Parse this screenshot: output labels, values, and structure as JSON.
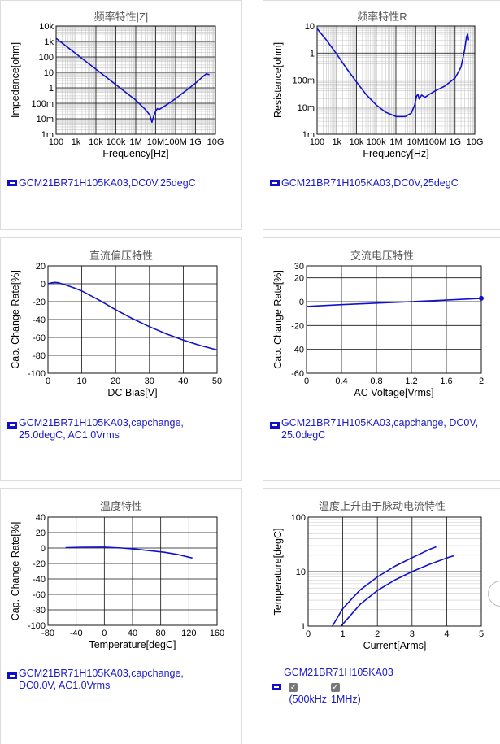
{
  "charts": [
    {
      "id": "zfreq",
      "title": "频率特性|Z|",
      "xlabel": "Frequency[Hz]",
      "ylabel": "Impedance[ohm]",
      "xscale": "log",
      "yscale": "log",
      "xlim": [
        100,
        10000000000
      ],
      "ylim": [
        0.001,
        10000
      ],
      "xticks": [
        {
          "v": 100,
          "l": "100"
        },
        {
          "v": 1000,
          "l": "1k"
        },
        {
          "v": 10000,
          "l": "10k"
        },
        {
          "v": 100000,
          "l": "100k"
        },
        {
          "v": 1000000,
          "l": "1M"
        },
        {
          "v": 10000000,
          "l": "10M"
        },
        {
          "v": 100000000,
          "l": "100M"
        },
        {
          "v": 1000000000,
          "l": "1G"
        },
        {
          "v": 10000000000,
          "l": "10G"
        }
      ],
      "yticks": [
        {
          "v": 10000,
          "l": "10k"
        },
        {
          "v": 1000,
          "l": "1k"
        },
        {
          "v": 100,
          "l": "100"
        },
        {
          "v": 10,
          "l": "10"
        },
        {
          "v": 1,
          "l": "1"
        },
        {
          "v": 0.1,
          "l": "100m"
        },
        {
          "v": 0.01,
          "l": "10m"
        },
        {
          "v": 0.001,
          "l": "1m"
        }
      ],
      "legend": [
        "GCM21BR71H105KA03,DC0V,25degC"
      ],
      "series": [
        {
          "points": [
            [
              100,
              1600
            ],
            [
              1000,
              160
            ],
            [
              10000,
              16
            ],
            [
              100000,
              1.6
            ],
            [
              1000000,
              0.16
            ],
            [
              3000000,
              0.04
            ],
            [
              5000000,
              0.018
            ],
            [
              6500000,
              0.006
            ],
            [
              8000000,
              0.015
            ],
            [
              10000000,
              0.03
            ],
            [
              12000000,
              0.045
            ],
            [
              15000000,
              0.04
            ],
            [
              20000000,
              0.05
            ],
            [
              40000000,
              0.09
            ],
            [
              100000000,
              0.2
            ],
            [
              300000000,
              0.6
            ],
            [
              1000000000,
              2
            ],
            [
              2000000000,
              4.5
            ],
            [
              3500000000,
              8
            ],
            [
              5000000000,
              7
            ]
          ]
        }
      ]
    },
    {
      "id": "rfreq",
      "title": "频率特性R",
      "xlabel": "Frequency[Hz]",
      "ylabel": "Resistance[ohm]",
      "xscale": "log",
      "yscale": "log",
      "xlim": [
        100,
        10000000000
      ],
      "ylim": [
        0.001,
        10
      ],
      "xticks": [
        {
          "v": 100,
          "l": "100"
        },
        {
          "v": 1000,
          "l": "1k"
        },
        {
          "v": 10000,
          "l": "10k"
        },
        {
          "v": 100000,
          "l": "100k"
        },
        {
          "v": 1000000,
          "l": "1M"
        },
        {
          "v": 10000000,
          "l": "10M"
        },
        {
          "v": 100000000,
          "l": "100M"
        },
        {
          "v": 1000000000,
          "l": "1G"
        },
        {
          "v": 10000000000,
          "l": "10G"
        }
      ],
      "yticks": [
        {
          "v": 10,
          "l": "10"
        },
        {
          "v": 1,
          "l": "1"
        },
        {
          "v": 0.1,
          "l": "100m"
        },
        {
          "v": 0.01,
          "l": "10m"
        },
        {
          "v": 0.001,
          "l": "1m"
        }
      ],
      "legend": [
        "GCM21BR71H105KA03,DC0V,25degC"
      ],
      "series": [
        {
          "points": [
            [
              100,
              8
            ],
            [
              300,
              3
            ],
            [
              1000,
              0.9
            ],
            [
              3000,
              0.28
            ],
            [
              10000,
              0.085
            ],
            [
              30000,
              0.03
            ],
            [
              100000,
              0.012
            ],
            [
              300000,
              0.0065
            ],
            [
              1000000,
              0.0045
            ],
            [
              3000000,
              0.0045
            ],
            [
              6000000,
              0.006
            ],
            [
              9000000,
              0.012
            ],
            [
              11000000,
              0.025
            ],
            [
              13000000,
              0.03
            ],
            [
              15000000,
              0.02
            ],
            [
              20000000,
              0.028
            ],
            [
              30000000,
              0.023
            ],
            [
              50000000,
              0.03
            ],
            [
              100000000,
              0.04
            ],
            [
              300000000,
              0.06
            ],
            [
              1000000000,
              0.12
            ],
            [
              2000000000,
              0.3
            ],
            [
              3000000000,
              1.2
            ],
            [
              3800000000,
              4
            ],
            [
              4300000000,
              5
            ],
            [
              4800000000,
              3
            ]
          ]
        }
      ]
    },
    {
      "id": "dcbias",
      "title": "直流偏压特性",
      "xlabel": "DC Bias[V]",
      "ylabel": "Cap. Change Rate[%]",
      "xscale": "linear",
      "yscale": "linear",
      "xlim": [
        0,
        50
      ],
      "ylim": [
        -100,
        20
      ],
      "xticks": [
        {
          "v": 0,
          "l": "0"
        },
        {
          "v": 10,
          "l": "10"
        },
        {
          "v": 20,
          "l": "20"
        },
        {
          "v": 30,
          "l": "30"
        },
        {
          "v": 40,
          "l": "40"
        },
        {
          "v": 50,
          "l": "50"
        }
      ],
      "yticks": [
        {
          "v": 20,
          "l": "20"
        },
        {
          "v": 0,
          "l": "0"
        },
        {
          "v": -20,
          "l": "-20"
        },
        {
          "v": -40,
          "l": "-40"
        },
        {
          "v": -60,
          "l": "-60"
        },
        {
          "v": -80,
          "l": "-80"
        },
        {
          "v": -100,
          "l": "-100"
        }
      ],
      "legend": [
        "GCM21BR71H105KA03,capchange,",
        "25.0degC, AC1.0Vrms"
      ],
      "series": [
        {
          "points": [
            [
              0,
              0
            ],
            [
              1,
              1
            ],
            [
              2,
              1.5
            ],
            [
              3,
              1.2
            ],
            [
              5,
              -1
            ],
            [
              8,
              -5
            ],
            [
              10,
              -8
            ],
            [
              15,
              -18
            ],
            [
              20,
              -29
            ],
            [
              25,
              -39
            ],
            [
              30,
              -48
            ],
            [
              35,
              -56
            ],
            [
              40,
              -63
            ],
            [
              45,
              -69
            ],
            [
              50,
              -74
            ]
          ]
        }
      ]
    },
    {
      "id": "acvolt",
      "title": "交流电压特性",
      "xlabel": "AC Voltage[Vrms]",
      "ylabel": "Cap. Change Rate[%]",
      "xscale": "linear",
      "yscale": "linear",
      "xlim": [
        0,
        2
      ],
      "ylim": [
        -60,
        30
      ],
      "xticks": [
        {
          "v": 0,
          "l": "0"
        },
        {
          "v": 0.4,
          "l": "0.4"
        },
        {
          "v": 0.8,
          "l": "0.8"
        },
        {
          "v": 1.2,
          "l": "1.2"
        },
        {
          "v": 1.6,
          "l": "1.6"
        },
        {
          "v": 2,
          "l": "2"
        }
      ],
      "yticks": [
        {
          "v": 30,
          "l": "30"
        },
        {
          "v": 20,
          "l": "20"
        },
        {
          "v": 0,
          "l": "0"
        },
        {
          "v": -20,
          "l": "-20"
        },
        {
          "v": -40,
          "l": "-40"
        },
        {
          "v": -60,
          "l": "-60"
        }
      ],
      "legend": [
        "GCM21BR71H105KA03,capchange, DC0V,",
        "25.0degC"
      ],
      "endDot": true,
      "series": [
        {
          "points": [
            [
              0,
              -4
            ],
            [
              0.4,
              -2.5
            ],
            [
              0.8,
              -1.2
            ],
            [
              1.2,
              0
            ],
            [
              1.6,
              1.3
            ],
            [
              2,
              2.8
            ]
          ]
        }
      ]
    },
    {
      "id": "temp",
      "title": "温度特性",
      "xlabel": "Temperature[degC]",
      "ylabel": "Cap. Change Rate[%]",
      "xscale": "linear",
      "yscale": "linear",
      "xlim": [
        -80,
        160
      ],
      "ylim": [
        -100,
        40
      ],
      "xticks": [
        {
          "v": -80,
          "l": "-80"
        },
        {
          "v": -40,
          "l": "-40"
        },
        {
          "v": 0,
          "l": "0"
        },
        {
          "v": 40,
          "l": "40"
        },
        {
          "v": 80,
          "l": "80"
        },
        {
          "v": 120,
          "l": "120"
        },
        {
          "v": 160,
          "l": "160"
        }
      ],
      "yticks": [
        {
          "v": 40,
          "l": "40"
        },
        {
          "v": 20,
          "l": "20"
        },
        {
          "v": 0,
          "l": "0"
        },
        {
          "v": -20,
          "l": "-20"
        },
        {
          "v": -40,
          "l": "-40"
        },
        {
          "v": -60,
          "l": "-60"
        },
        {
          "v": -80,
          "l": "-80"
        },
        {
          "v": -100,
          "l": "-100"
        }
      ],
      "legend": [
        "GCM21BR71H105KA03,capchange,",
        "DC0.0V, AC1.0Vrms"
      ],
      "series": [
        {
          "points": [
            [
              -55,
              0.5
            ],
            [
              -30,
              1
            ],
            [
              0,
              1.2
            ],
            [
              25,
              0
            ],
            [
              45,
              -1.5
            ],
            [
              65,
              -3.5
            ],
            [
              85,
              -5.5
            ],
            [
              105,
              -8.5
            ],
            [
              125,
              -13
            ]
          ]
        }
      ]
    },
    {
      "id": "tempcur",
      "title": "温度上升由于脉动电流特性",
      "xlabel": "Current[Arms]",
      "ylabel": "Temperature[degC]",
      "xscale": "linear",
      "yscale": "log",
      "xlim": [
        0,
        5
      ],
      "ylim": [
        1,
        100
      ],
      "xticks": [
        {
          "v": 0,
          "l": "0"
        },
        {
          "v": 1,
          "l": "1"
        },
        {
          "v": 2,
          "l": "2"
        },
        {
          "v": 3,
          "l": "3"
        },
        {
          "v": 4,
          "l": "4"
        },
        {
          "v": 5,
          "l": "5"
        }
      ],
      "yticks": [
        {
          "v": 100,
          "l": "100"
        },
        {
          "v": 10,
          "l": "10"
        },
        {
          "v": 1,
          "l": "1"
        }
      ],
      "legend_title": "GCM21BR71H105KA03",
      "legend_items": [
        "(500kHz",
        "1MHz)"
      ],
      "series": [
        {
          "name": "500kHz",
          "points": [
            [
              0.7,
              1
            ],
            [
              1,
              2.1
            ],
            [
              1.5,
              4.6
            ],
            [
              2,
              8
            ],
            [
              2.5,
              12.5
            ],
            [
              3,
              18
            ],
            [
              3.5,
              25.5
            ],
            [
              3.7,
              28.5
            ]
          ]
        },
        {
          "name": "1MHz",
          "points": [
            [
              0.95,
              1
            ],
            [
              1.5,
              2.5
            ],
            [
              2,
              4.5
            ],
            [
              2.5,
              7
            ],
            [
              3,
              10
            ],
            [
              3.5,
              13.6
            ],
            [
              4,
              17.8
            ],
            [
              4.2,
              19.5
            ]
          ]
        }
      ]
    }
  ]
}
